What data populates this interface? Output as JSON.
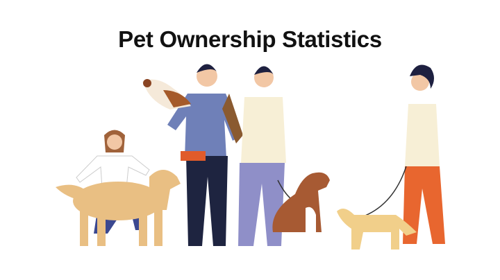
{
  "title": "Pet Ownership Statistics",
  "illustration": {
    "figures": [
      "woman-kneeling-with-golden-retriever",
      "man-with-bird",
      "man-with-brown-dog",
      "woman-with-small-dog"
    ],
    "colors": {
      "golden_dog": "#e9bf83",
      "brown_dog": "#a75a33",
      "small_dog": "#f1cf8a",
      "man_sweater": "#6f80b8",
      "pants_navy": "#1e2440",
      "pants_lavender": "#8f8fc8",
      "pants_orange": "#e8662f",
      "shirt_cream": "#f7efd6",
      "hair": "#1e2040"
    }
  }
}
